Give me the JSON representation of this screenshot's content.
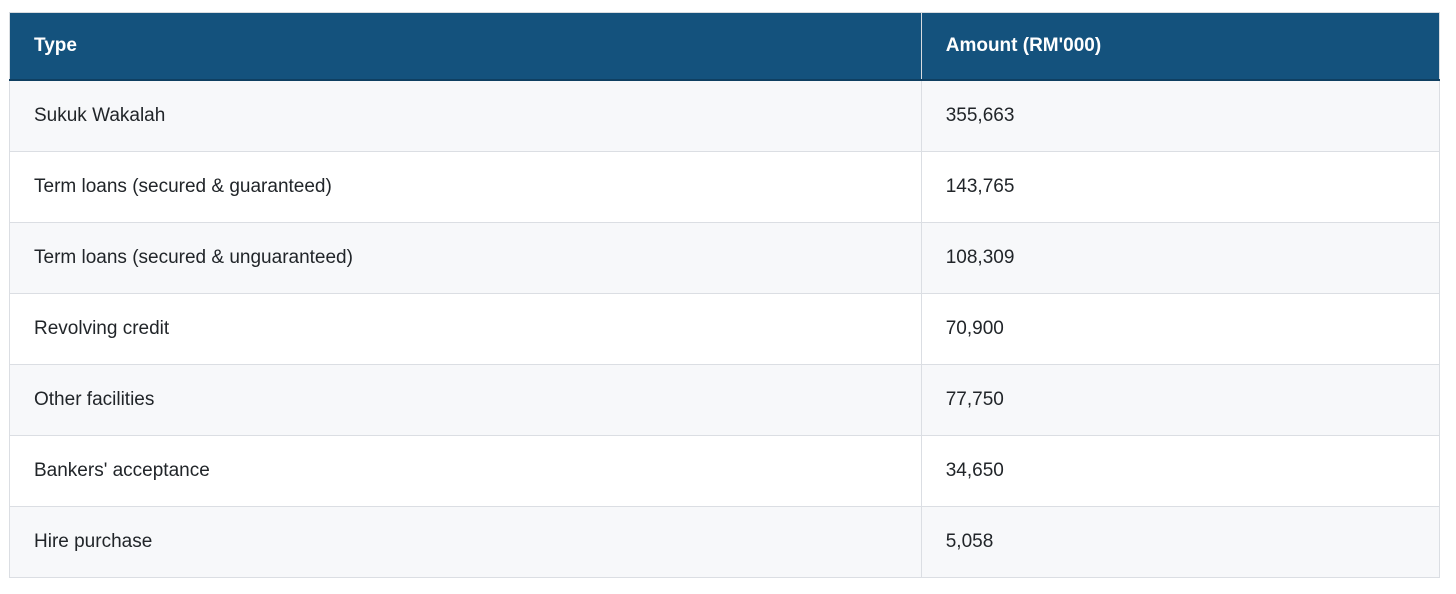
{
  "chart_data": {
    "type": "table",
    "columns": [
      "Type",
      "Amount (RM'000)"
    ],
    "rows": [
      [
        "Sukuk Wakalah",
        355663
      ],
      [
        "Term loans (secured & guaranteed)",
        143765
      ],
      [
        "Term loans (secured & unguaranteed)",
        108309
      ],
      [
        "Revolving credit",
        70900
      ],
      [
        "Other facilities",
        77750
      ],
      [
        "Bankers' acceptance",
        34650
      ],
      [
        "Hire purchase",
        5058
      ]
    ],
    "title": "",
    "layout_hints": {
      "header_background": "#14527d",
      "striped_rows": true,
      "first_striped_row_index": 0
    }
  },
  "table": {
    "columns": [
      {
        "label": "Type"
      },
      {
        "label": "Amount (RM'000)"
      }
    ],
    "rows": [
      {
        "type": "Sukuk Wakalah",
        "amount": "355,663"
      },
      {
        "type": "Term loans (secured & guaranteed)",
        "amount": "143,765"
      },
      {
        "type": "Term loans (secured & unguaranteed)",
        "amount": "108,309"
      },
      {
        "type": "Revolving credit",
        "amount": "70,900"
      },
      {
        "type": "Other facilities",
        "amount": "77,750"
      },
      {
        "type": "Bankers' acceptance",
        "amount": "34,650"
      },
      {
        "type": "Hire purchase",
        "amount": "5,058"
      }
    ],
    "colors": {
      "header_bg": "#14527d",
      "header_text": "#ffffff",
      "header_bottom_border": "#0f3f61",
      "stripe_row_bg": "#f7f8fa",
      "row_bg": "#ffffff",
      "border": "#dbdee3",
      "text": "#212529"
    }
  }
}
